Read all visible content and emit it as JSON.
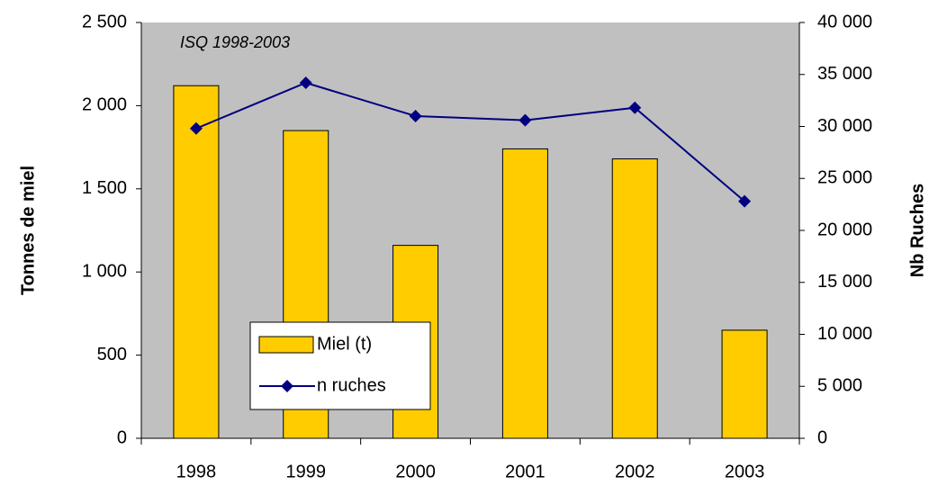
{
  "chart_data": {
    "type": "bar_line",
    "annotation": "ISQ 1998-2003",
    "y_label": "Tonnes de miel",
    "y2_label": "Nb Ruches",
    "categories": [
      "1998",
      "1999",
      "2000",
      "2001",
      "2002",
      "2003"
    ],
    "series": [
      {
        "name": "Miel (t)",
        "type": "bar",
        "color": "#ffcc00",
        "values": [
          2120,
          1850,
          1160,
          1740,
          1680,
          650
        ]
      },
      {
        "name": "n ruches",
        "type": "line",
        "axis": "y2",
        "color": "#000080",
        "values": [
          29800,
          34200,
          31000,
          30600,
          31800,
          22800
        ]
      }
    ],
    "ylim": [
      0,
      2500
    ],
    "yticks": [
      0,
      {
        "value": 500,
        "label": "500"
      },
      {
        "value": 1000,
        "label": "1 000"
      },
      {
        "value": 1500,
        "label": "1 500"
      },
      {
        "value": 2000,
        "label": "2 000"
      },
      {
        "value": 2500,
        "label": "2 500"
      }
    ],
    "y2lim": [
      0,
      40000
    ],
    "y2ticks": [
      0,
      {
        "value": 5000,
        "label": "5 000"
      },
      {
        "value": 10000,
        "label": "10 000"
      },
      {
        "value": 15000,
        "label": "15 000"
      },
      {
        "value": 20000,
        "label": "20 000"
      },
      {
        "value": 25000,
        "label": "25 000"
      },
      {
        "value": 30000,
        "label": "30 000"
      },
      {
        "value": 35000,
        "label": "35 000"
      },
      {
        "value": 40000,
        "label": "40 000"
      }
    ],
    "plot_background": "#c0c0c0",
    "legend_position": "lower left"
  }
}
